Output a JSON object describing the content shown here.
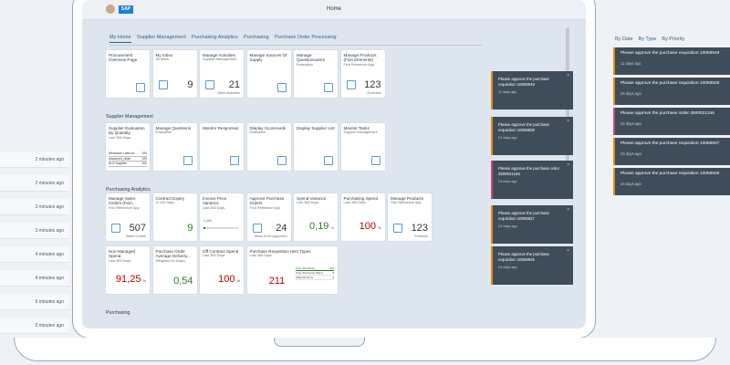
{
  "left_panel": {
    "items": [
      "2 minutes ago",
      "2 minutes ago",
      "3 minutes ago",
      "3 minutes ago",
      "4 minutes ago",
      "4 minutes ago",
      "5 minutes ago",
      "5 minutes ago"
    ]
  },
  "right_panel": {
    "filters": [
      "By Date",
      "By Type",
      "By Priority"
    ],
    "items": [
      {
        "text": "Please approve the purchase requisition 10058949",
        "age": "11 days ago",
        "color": "#e78c07"
      },
      {
        "text": "Please approve the purchase requisition 10058928",
        "age": "24 days ago",
        "color": "#e78c07"
      },
      {
        "text": "Please approve the purchase order 4500021246",
        "age": "24 days ago",
        "color": "#d04a6c"
      },
      {
        "text": "Please approve the purchase requisition 10058927",
        "age": "24 days ago",
        "color": "#e78c07"
      },
      {
        "text": "Please approve the purchase requisition 10058926",
        "age": "24 days ago",
        "color": "#e78c07"
      }
    ]
  },
  "shell": {
    "title": "Home",
    "tabs": [
      "My Home",
      "Supplier Management",
      "Purchasing Analytics",
      "Purchasing",
      "Purchase Order Processing"
    ]
  },
  "groups": [
    {
      "title": null,
      "rows": [
        [
          {
            "title": "Procurement Overview Page",
            "icon": true
          },
          {
            "title": "My Inbox",
            "subtitle": "All Items",
            "number": "9",
            "icon": true
          },
          {
            "title": "Manage Activities",
            "subtitle": "Supplier Management",
            "number": "21",
            "footer": "Open Activities",
            "icon": true
          },
          {
            "title": "Manage Sources Of Supply",
            "icon": true
          },
          {
            "title": "Manage Questionnaires",
            "subtitle": "Evaluation",
            "icon": true
          },
          {
            "title": "Manage Products (Fiori Elements)",
            "subtitle": "Fiori Reference App",
            "number": "123",
            "footer": "Products",
            "icon": true
          }
        ]
      ]
    },
    {
      "title": "Supplier Management",
      "rows": [
        [
          {
            "title": "Supplier Evaluation By Quantity",
            "subtitle": "Last 365 Days",
            "table": [
              [
                "Mercurian Labs Inc",
                "100"
              ],
              [
                "advanced_dealt",
                "100"
              ],
              [
                "ALS Supplier",
                "100"
              ]
            ]
          },
          {
            "title": "Manage Questions",
            "subtitle": "Evaluation",
            "icon": true
          },
          {
            "title": "Monitor Responses",
            "icon": true
          },
          {
            "title": "Display Scorecards",
            "subtitle": "Evaluation",
            "icon": true
          },
          {
            "title": "Display Supplier List",
            "icon": true
          },
          {
            "title": "Monitor Tasks",
            "subtitle": "Supplier Management",
            "icon": true
          }
        ]
      ]
    },
    {
      "title": "Purchasing Analytics",
      "rows": [
        [
          {
            "title": "Manage Sales Orders (Fiori...",
            "subtitle": "Fiori Reference App",
            "number": "507",
            "footer": "Sales Orders",
            "icon": true
          },
          {
            "title": "Contract Expiry",
            "subtitle": "In 100 Days",
            "number": "9",
            "color": "#2b7c2b"
          },
          {
            "title": "Invoice Price Variance",
            "subtitle": "Last 365 Days",
            "spark": "1,44K"
          },
          {
            "title": "Approve Purchase Orders",
            "subtitle": "Fiori Reference App",
            "number": "24",
            "footer": "Items to be Approved",
            "icon": true
          },
          {
            "title": "Spend Variance",
            "subtitle": "Last 365 Days",
            "number": "0,19",
            "unit": "%",
            "color": "#2b7c2b"
          },
          {
            "title": "Purchasing Spend",
            "subtitle": "Last 365 Days",
            "number": "100",
            "unit": "%",
            "color": "#bb0000"
          },
          {
            "title": "Manage Products",
            "subtitle": "Fiori Reference App",
            "number": "123",
            "footer": "Products",
            "icon": true
          }
        ],
        [
          {
            "title": "Non-Managed Spend",
            "subtitle": "Last 365 Days",
            "number": "91,25",
            "unit": "%",
            "color": "#bb0000"
          },
          {
            "title": "Purchase Order Average Delivery...",
            "subtitle": "Weighted (in Days)",
            "number": "0,54",
            "color": "#2b7c2b"
          },
          {
            "title": "Off Contract Spend",
            "subtitle": "Last 365 Days",
            "number": "100",
            "unit": "%",
            "color": "#bb0000"
          },
          {
            "title": "Purchase Requisition Item Types",
            "subtitle": "Last 365 Days",
            "number": "211",
            "color": "#bb0000",
            "wide": true,
            "bars": [
              [
                "Free Text Items",
                "211"
              ],
              [
                "Free Text Items (Stoc)",
                "0"
              ],
              [
                "Material Items",
                "0"
              ]
            ]
          }
        ]
      ]
    },
    {
      "title": "Purchasing",
      "rows": []
    }
  ],
  "notifications": [
    {
      "text": "Please approve the purchase requisition 10058949",
      "age": "11 days ago",
      "color": "#e78c07"
    },
    {
      "text": "Please approve the purchase requisition 10058928",
      "age": "24 days ago",
      "color": "#e78c07"
    },
    {
      "text": "Please approve the purchase order 4500021246",
      "age": "24 days ago",
      "color": "#d04a6c"
    },
    {
      "text": "Please approve the purchase requisition 10058927",
      "age": "24 days ago",
      "color": "#e78c07"
    },
    {
      "text": "Please approve the purchase requisition 10058926",
      "age": "24 days ago",
      "color": "#e78c07"
    }
  ]
}
